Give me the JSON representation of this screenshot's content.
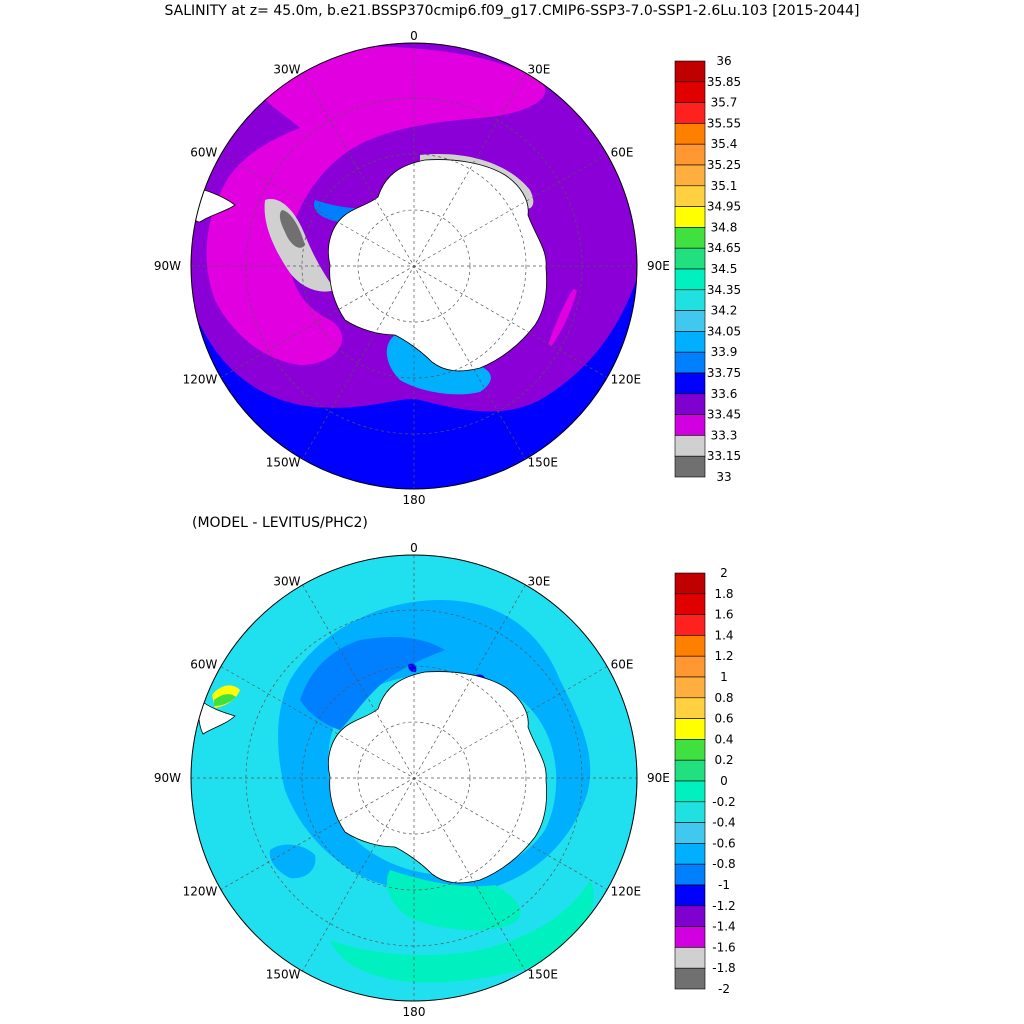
{
  "title": "SALINITY at z=  45.0m, b.e21.BSSP370cmip6.f09_g17.CMIP6-SSP3-7.0-SSP1-2.6Lu.103 [2015-2044]",
  "diff_title": "(MODEL - LEVITUS/PHC2)",
  "longitude_labels": [
    "0",
    "30E",
    "60E",
    "90E",
    "120E",
    "150E",
    "180",
    "150W",
    "120W",
    "90W",
    "60W",
    "30W"
  ],
  "colors": {
    "land": "#ffffff",
    "grid": "#555555"
  },
  "salinity_map": {
    "background_color": "#8b00d6",
    "colorbar": {
      "labels": [
        "36",
        "35.85",
        "35.7",
        "35.55",
        "35.4",
        "35.25",
        "35.1",
        "34.95",
        "34.8",
        "34.65",
        "34.5",
        "34.35",
        "34.2",
        "34.05",
        "33.9",
        "33.75",
        "33.6",
        "33.45",
        "33.3",
        "33.15",
        "33"
      ],
      "colors": [
        "#c00000",
        "#e00000",
        "#ff2020",
        "#ff8000",
        "#ff9830",
        "#ffae40",
        "#ffd040",
        "#ffff00",
        "#40e040",
        "#20e080",
        "#00f0c0",
        "#20e0e0",
        "#40c8f0",
        "#00b0ff",
        "#0080ff",
        "#0000ff",
        "#8000d0",
        "#d000e0",
        "#d0d0d0",
        "#707070"
      ]
    }
  },
  "difference_map": {
    "background_color": "#20e0f0",
    "colorbar": {
      "labels": [
        "2",
        "1.8",
        "1.6",
        "1.4",
        "1.2",
        "1",
        "0.8",
        "0.6",
        "0.4",
        "0.2",
        "0",
        "-0.2",
        "-0.4",
        "-0.6",
        "-0.8",
        "-1",
        "-1.2",
        "-1.4",
        "-1.6",
        "-1.8",
        "-2"
      ],
      "colors": [
        "#c00000",
        "#e00000",
        "#ff2020",
        "#ff8000",
        "#ff9830",
        "#ffae40",
        "#ffd040",
        "#ffff00",
        "#40e040",
        "#20e080",
        "#00f0c0",
        "#20e0e0",
        "#40c8f0",
        "#00b0ff",
        "#0080ff",
        "#0000ff",
        "#8000d0",
        "#d000e0",
        "#d0d0d0",
        "#707070"
      ]
    }
  }
}
